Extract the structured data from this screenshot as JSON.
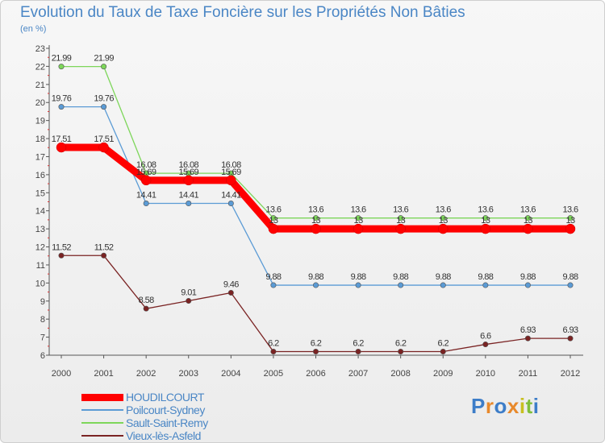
{
  "chart_data": {
    "type": "line",
    "title": "Evolution du Taux de Taxe Foncière sur les Propriétés Non Bâties",
    "subtitle": "(en %)",
    "xlabel": "",
    "ylabel": "",
    "categories": [
      "2000",
      "2001",
      "2002",
      "2003",
      "2004",
      "2005",
      "2006",
      "2007",
      "2008",
      "2009",
      "2010",
      "2011",
      "2012"
    ],
    "ylim": [
      6,
      23
    ],
    "yticks": [
      6,
      7,
      8,
      9,
      10,
      11,
      12,
      13,
      14,
      15,
      16,
      17,
      18,
      19,
      20,
      21,
      22,
      23
    ],
    "grid": false,
    "legend_position": "bottom-left",
    "series": [
      {
        "name": "HOUDILCOURT",
        "color": "#ff0000",
        "values": [
          17.51,
          17.51,
          15.69,
          15.69,
          15.69,
          13,
          13,
          13,
          13,
          13,
          13,
          13,
          13
        ],
        "labels": [
          "17.51",
          "17.51",
          "15.69",
          "15.69",
          "15.69",
          "13",
          "13",
          "13",
          "13",
          "13",
          "13",
          "13",
          "13"
        ]
      },
      {
        "name": "Poilcourt-Sydney",
        "color": "#5b9bd5",
        "values": [
          19.76,
          19.76,
          14.41,
          14.41,
          14.41,
          9.88,
          9.88,
          9.88,
          9.88,
          9.88,
          9.88,
          9.88,
          9.88
        ],
        "labels": [
          "19.76",
          "19.76",
          "14.41",
          "14.41",
          "14.41",
          "9.88",
          "9.88",
          "9.88",
          "9.88",
          "9.88",
          "9.88",
          "9.88",
          "9.88"
        ]
      },
      {
        "name": "Sault-Saint-Remy",
        "color": "#7dd65a",
        "values": [
          21.99,
          21.99,
          16.08,
          16.08,
          16.08,
          13.6,
          13.6,
          13.6,
          13.6,
          13.6,
          13.6,
          13.6,
          13.6
        ],
        "labels": [
          "21.99",
          "21.99",
          "16.08",
          "16.08",
          "16.08",
          "13.6",
          "13.6",
          "13.6",
          "13.6",
          "13.6",
          "13.6",
          "13.6",
          "13.6"
        ]
      },
      {
        "name": "Vieux-lès-Asfeld",
        "color": "#7a2323",
        "values": [
          11.52,
          11.52,
          8.58,
          9.01,
          9.46,
          6.2,
          6.2,
          6.2,
          6.2,
          6.2,
          6.6,
          6.93,
          6.93
        ],
        "labels": [
          "11.52",
          "11.52",
          "8.58",
          "9.01",
          "9.46",
          "6.2",
          "6.2",
          "6.2",
          "6.2",
          "6.2",
          "6.6",
          "6.93",
          "6.93"
        ]
      }
    ]
  },
  "logo": {
    "text": "Proxiti",
    "letter_colors": [
      "#3d7dc8",
      "#e8892b",
      "#3d7dc8",
      "#e8892b",
      "#c8c020",
      "#7fbf3a",
      "#3d7dc8"
    ]
  }
}
